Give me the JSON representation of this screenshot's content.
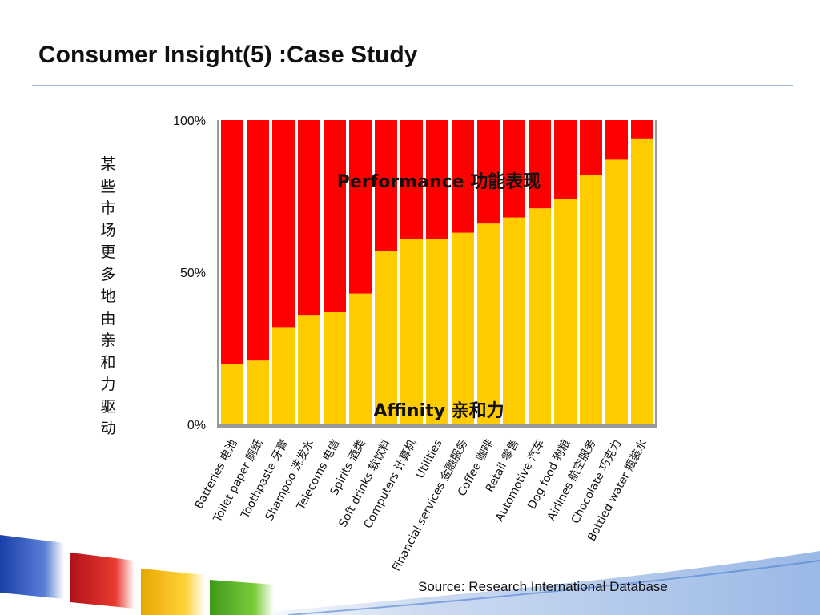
{
  "slide": {
    "title": "Consumer Insight(5) :Case Study",
    "source": "Source: Research International Database"
  },
  "colors": {
    "performance": "#ff0000",
    "affinity": "#ffcc00",
    "axis_shadow": "#999999",
    "title_rule": "#9fb6d2"
  },
  "chart_data": {
    "type": "bar",
    "stacked": true,
    "ylabel": "某些市场更多地由亲和力驱动",
    "ylim": [
      0,
      100
    ],
    "yticks": [
      "0%",
      "50%",
      "100%"
    ],
    "grid": false,
    "legend": "inline labels",
    "categories": [
      "Batteries 电池",
      "Toilet paper 厕纸",
      "Toothpaste 牙膏",
      "Shampoo 洗发水",
      "Telecoms 电信",
      "Spirits 酒类",
      "Soft drinks 软饮料",
      "Computers 计算机",
      "Utilities",
      "Financial services 金融服务",
      "Coffee 咖啡",
      "Retail 零售",
      "Automotive 汽车",
      "Dog food 狗粮",
      "Airlines 航空服务",
      "Chocolate 巧克力",
      "Bottled water 瓶装水"
    ],
    "series": [
      {
        "name": "Affinity 亲和力",
        "values": [
          20,
          21,
          32,
          36,
          37,
          43,
          57,
          61,
          61,
          63,
          66,
          68,
          71,
          74,
          82,
          87,
          94
        ]
      },
      {
        "name": "Performance 功能表现",
        "values": [
          80,
          79,
          68,
          64,
          63,
          57,
          43,
          39,
          39,
          37,
          34,
          32,
          29,
          26,
          18,
          13,
          6
        ]
      }
    ]
  }
}
